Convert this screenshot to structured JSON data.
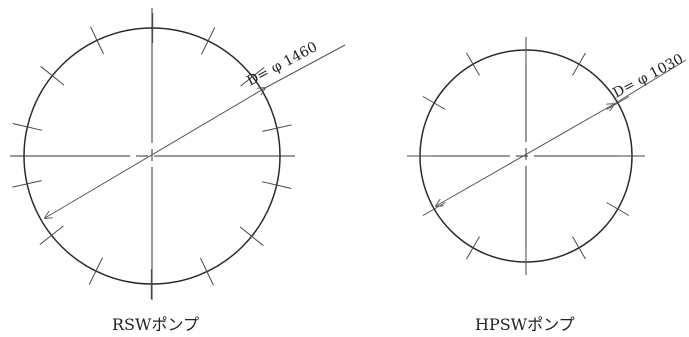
{
  "diagrams": [
    {
      "diameter_label": "D= φ 1460",
      "caption": "RSWポンプ",
      "tick_count": 14
    },
    {
      "diameter_label": "D= φ 1030",
      "caption": "HPSWポンプ",
      "tick_count": 12
    }
  ]
}
